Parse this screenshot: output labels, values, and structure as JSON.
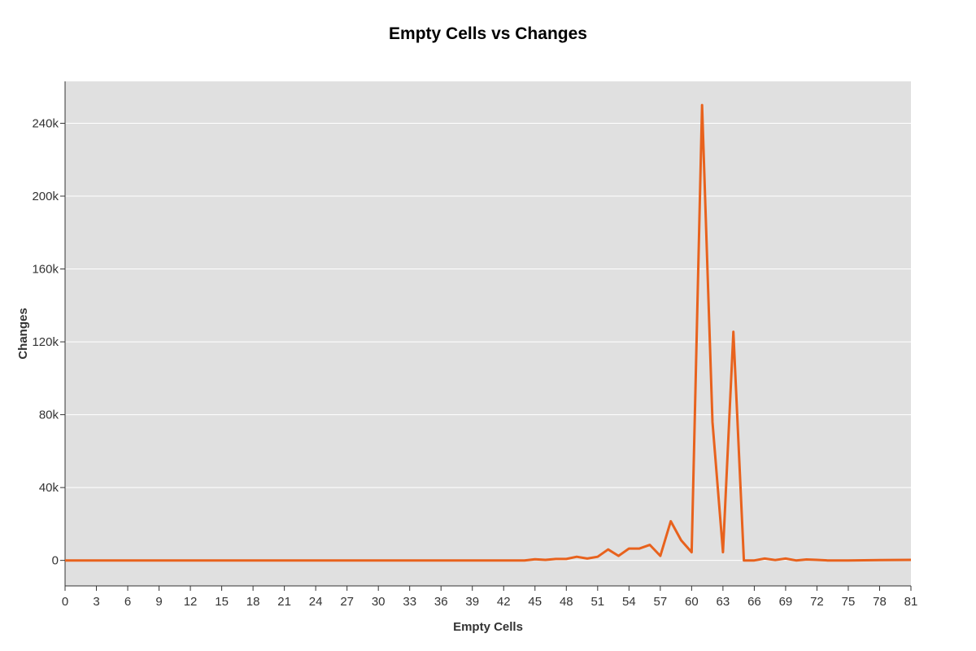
{
  "chart_data": {
    "type": "line",
    "title": "Empty Cells vs Changes",
    "xlabel": "Empty Cells",
    "ylabel": "Changes",
    "xlim": [
      0,
      81
    ],
    "ylim": [
      -14000,
      263000
    ],
    "x_ticks": [
      0,
      3,
      6,
      9,
      12,
      15,
      18,
      21,
      24,
      27,
      30,
      33,
      36,
      39,
      42,
      45,
      48,
      51,
      54,
      57,
      60,
      63,
      66,
      69,
      72,
      75,
      78,
      81
    ],
    "y_ticks": [
      {
        "value": 0,
        "label": "0"
      },
      {
        "value": 40000,
        "label": "40k"
      },
      {
        "value": 80000,
        "label": "80k"
      },
      {
        "value": 120000,
        "label": "120k"
      },
      {
        "value": 160000,
        "label": "160k"
      },
      {
        "value": 200000,
        "label": "200k"
      },
      {
        "value": 240000,
        "label": "240k"
      }
    ],
    "grid": true,
    "background": "#e0e0e0",
    "line_color": "#e8621d",
    "series": [
      {
        "x": [
          0,
          3,
          6,
          9,
          12,
          15,
          18,
          21,
          24,
          27,
          30,
          33,
          36,
          39,
          42,
          44,
          45,
          46,
          47,
          48,
          49,
          50,
          51,
          52,
          53,
          54,
          55,
          56,
          57,
          58,
          59,
          60,
          61,
          62,
          63,
          64,
          65,
          66,
          67,
          68,
          69,
          70,
          71,
          72,
          73,
          75,
          78,
          81
        ],
        "values": [
          0,
          0,
          0,
          0,
          0,
          0,
          0,
          0,
          0,
          0,
          0,
          0,
          0,
          0,
          0,
          0,
          600,
          300,
          800,
          800,
          2000,
          1000,
          2000,
          6000,
          2500,
          6500,
          6500,
          8500,
          2500,
          21500,
          11000,
          4500,
          250000,
          76000,
          4500,
          125500,
          0,
          0,
          1000,
          200,
          1000,
          0,
          500,
          300,
          0,
          0,
          200,
          300
        ]
      }
    ]
  }
}
